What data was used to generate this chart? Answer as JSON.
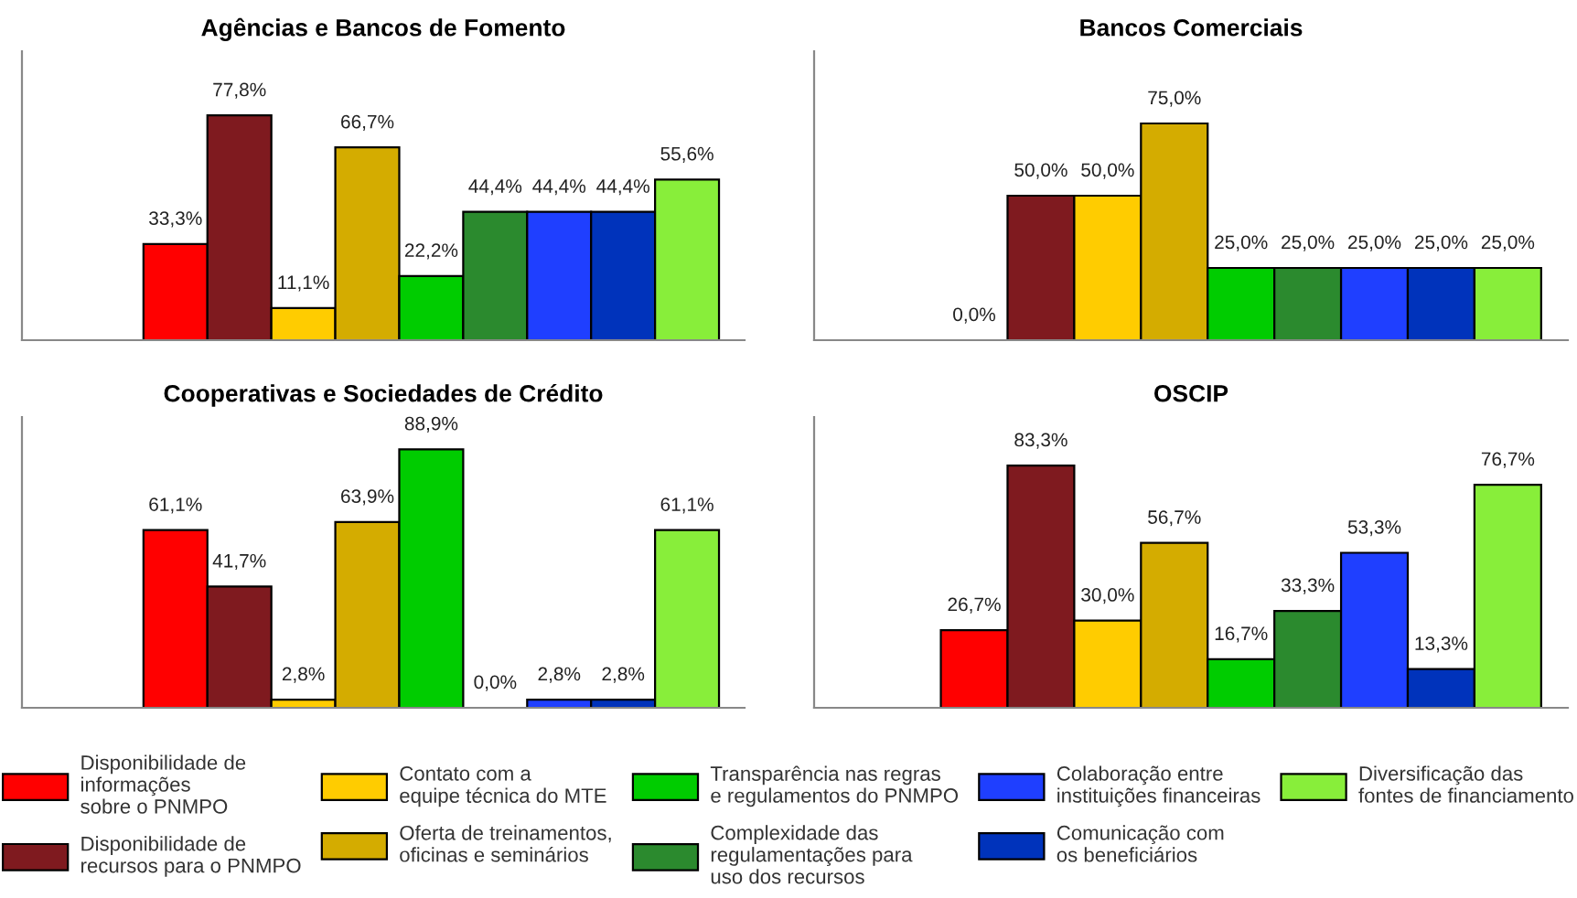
{
  "chart_data": [
    {
      "type": "bar",
      "title": "Agências e Bancos de Fomento",
      "categories": [
        null
      ],
      "ylim": [
        0,
        100
      ],
      "data_labels": true,
      "legend": "bottom",
      "series": [
        {
          "name": "Disponibilidade de\ninformações\nsobre o PNMPO",
          "color": "#ff0000",
          "values": [
            33.3
          ],
          "value_labels": [
            "33,3%"
          ]
        },
        {
          "name": "Disponibilidade de\nrecursos para o PNMPO",
          "color": "#7f1a1f",
          "values": [
            77.8
          ],
          "value_labels": [
            "77,8%"
          ]
        },
        {
          "name": "Contato com a\nequipe técnica do MTE",
          "color": "#ffcc00",
          "values": [
            11.1
          ],
          "value_labels": [
            "11,1%"
          ]
        },
        {
          "name": "Oferta de treinamentos,\noficinas e seminários",
          "color": "#d4ac00",
          "values": [
            66.7
          ],
          "value_labels": [
            "66,7%"
          ]
        },
        {
          "name": "Transparência nas regras\ne regulamentos do PNMPO",
          "color": "#00cc00",
          "values": [
            22.2
          ],
          "value_labels": [
            "22,2%"
          ]
        },
        {
          "name": "Complexidade das\nregulamentações para\nuso dos recursos",
          "color": "#2b8a2e",
          "values": [
            44.4
          ],
          "value_labels": [
            "44,4%"
          ]
        },
        {
          "name": "Colaboração entre\ninstituições financeiras",
          "color": "#1f3fff",
          "values": [
            44.4
          ],
          "value_labels": [
            "44,4%"
          ]
        },
        {
          "name": "Comunicação com\nos beneficiários",
          "color": "#0033bb",
          "values": [
            44.4
          ],
          "value_labels": [
            "44,4%"
          ]
        },
        {
          "name": "Diversificação das\nfontes de financiamento",
          "color": "#88ee3a",
          "values": [
            55.6
          ],
          "value_labels": [
            "55,6%"
          ]
        }
      ]
    },
    {
      "type": "bar",
      "title": "Bancos Comerciais",
      "categories": [
        null
      ],
      "ylim": [
        0,
        100
      ],
      "data_labels": true,
      "series": [
        {
          "color": "#ff0000",
          "values": [
            0.0
          ],
          "value_labels": [
            "0,0%"
          ]
        },
        {
          "color": "#7f1a1f",
          "values": [
            50.0
          ],
          "value_labels": [
            "50,0%"
          ]
        },
        {
          "color": "#ffcc00",
          "values": [
            50.0
          ],
          "value_labels": [
            "50,0%"
          ]
        },
        {
          "color": "#d4ac00",
          "values": [
            75.0
          ],
          "value_labels": [
            "75,0%"
          ]
        },
        {
          "color": "#00cc00",
          "values": [
            25.0
          ],
          "value_labels": [
            "25,0%"
          ]
        },
        {
          "color": "#2b8a2e",
          "values": [
            25.0
          ],
          "value_labels": [
            "25,0%"
          ]
        },
        {
          "color": "#1f3fff",
          "values": [
            25.0
          ],
          "value_labels": [
            "25,0%"
          ]
        },
        {
          "color": "#0033bb",
          "values": [
            25.0
          ],
          "value_labels": [
            "25,0%"
          ]
        },
        {
          "color": "#88ee3a",
          "values": [
            25.0
          ],
          "value_labels": [
            "25,0%"
          ]
        }
      ]
    },
    {
      "type": "bar",
      "title": "Cooperativas e Sociedades de Crédito",
      "categories": [
        null
      ],
      "ylim": [
        0,
        100
      ],
      "data_labels": true,
      "series": [
        {
          "color": "#ff0000",
          "values": [
            61.1
          ],
          "value_labels": [
            "61,1%"
          ]
        },
        {
          "color": "#7f1a1f",
          "values": [
            41.7
          ],
          "value_labels": [
            "41,7%"
          ]
        },
        {
          "color": "#ffcc00",
          "values": [
            2.8
          ],
          "value_labels": [
            "2,8%"
          ]
        },
        {
          "color": "#d4ac00",
          "values": [
            63.9
          ],
          "value_labels": [
            "63,9%"
          ]
        },
        {
          "color": "#00cc00",
          "values": [
            88.9
          ],
          "value_labels": [
            "88,9%"
          ]
        },
        {
          "color": "#2b8a2e",
          "values": [
            0.0
          ],
          "value_labels": [
            "0,0%"
          ]
        },
        {
          "color": "#1f3fff",
          "values": [
            2.8
          ],
          "value_labels": [
            "2,8%"
          ]
        },
        {
          "color": "#0033bb",
          "values": [
            2.8
          ],
          "value_labels": [
            "2,8%"
          ]
        },
        {
          "color": "#88ee3a",
          "values": [
            61.1
          ],
          "value_labels": [
            "61,1%"
          ]
        }
      ]
    },
    {
      "type": "bar",
      "title": "OSCIP",
      "categories": [
        null
      ],
      "ylim": [
        0,
        100
      ],
      "data_labels": true,
      "series": [
        {
          "color": "#ff0000",
          "values": [
            26.7
          ],
          "value_labels": [
            "26,7%"
          ]
        },
        {
          "color": "#7f1a1f",
          "values": [
            83.3
          ],
          "value_labels": [
            "83,3%"
          ]
        },
        {
          "color": "#ffcc00",
          "values": [
            30.0
          ],
          "value_labels": [
            "30,0%"
          ]
        },
        {
          "color": "#d4ac00",
          "values": [
            56.7
          ],
          "value_labels": [
            "56,7%"
          ]
        },
        {
          "color": "#00cc00",
          "values": [
            16.7
          ],
          "value_labels": [
            "16,7%"
          ]
        },
        {
          "color": "#2b8a2e",
          "values": [
            33.3
          ],
          "value_labels": [
            "33,3%"
          ]
        },
        {
          "color": "#1f3fff",
          "values": [
            53.3
          ],
          "value_labels": [
            "53,3%"
          ]
        },
        {
          "color": "#0033bb",
          "values": [
            13.3
          ],
          "value_labels": [
            "13,3%"
          ]
        },
        {
          "color": "#88ee3a",
          "values": [
            76.7
          ],
          "value_labels": [
            "76,7%"
          ]
        }
      ]
    }
  ]
}
